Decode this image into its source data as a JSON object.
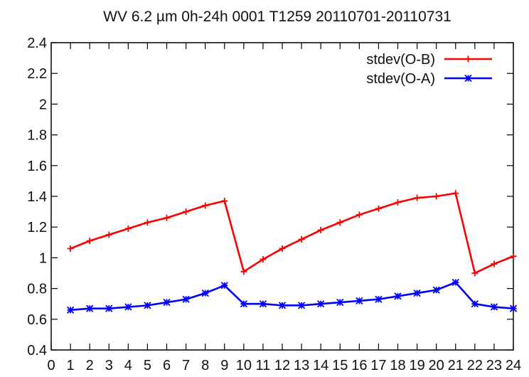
{
  "chart_data": {
    "type": "line",
    "title": "WV 6.2 µm  0h-24h 0001 T1259 20110701-20110731",
    "xlabel": "",
    "ylabel": "",
    "x": [
      1,
      2,
      3,
      4,
      5,
      6,
      7,
      8,
      9,
      10,
      11,
      12,
      13,
      14,
      15,
      16,
      17,
      18,
      19,
      20,
      21,
      22,
      23,
      24
    ],
    "xlim": [
      0,
      24
    ],
    "ylim": [
      0.4,
      2.4
    ],
    "x_ticks": [
      "0",
      "1",
      "2",
      "3",
      "4",
      "5",
      "6",
      "7",
      "8",
      "9",
      "10",
      "11",
      "12",
      "13",
      "14",
      "15",
      "16",
      "17",
      "18",
      "19",
      "20",
      "21",
      "22",
      "23",
      "24"
    ],
    "y_ticks": [
      {
        "value": 0.4,
        "label": "0.4"
      },
      {
        "value": 0.6,
        "label": "0.6"
      },
      {
        "value": 0.8,
        "label": "0.8"
      },
      {
        "value": 1.0,
        "label": "1"
      },
      {
        "value": 1.2,
        "label": "1.2"
      },
      {
        "value": 1.4,
        "label": "1.4"
      },
      {
        "value": 1.6,
        "label": "1.6"
      },
      {
        "value": 1.8,
        "label": "1.8"
      },
      {
        "value": 2.0,
        "label": "2"
      },
      {
        "value": 2.2,
        "label": "2.2"
      },
      {
        "value": 2.4,
        "label": "2.4"
      }
    ],
    "grid": false,
    "legend_position": "top-right",
    "series": [
      {
        "name": "stdev(O-B)",
        "color": "#ff0000",
        "marker": "plus",
        "values": [
          1.06,
          1.11,
          1.15,
          1.19,
          1.23,
          1.26,
          1.3,
          1.34,
          1.37,
          0.91,
          0.99,
          1.06,
          1.12,
          1.18,
          1.23,
          1.28,
          1.32,
          1.36,
          1.39,
          1.4,
          1.42,
          0.9,
          0.96,
          1.01
        ]
      },
      {
        "name": "stdev(O-A)",
        "color": "#0000ff",
        "marker": "star",
        "values": [
          0.66,
          0.67,
          0.67,
          0.68,
          0.69,
          0.71,
          0.73,
          0.77,
          0.82,
          0.7,
          0.7,
          0.69,
          0.69,
          0.7,
          0.71,
          0.72,
          0.73,
          0.75,
          0.77,
          0.79,
          0.84,
          0.7,
          0.68,
          0.67
        ]
      }
    ]
  }
}
